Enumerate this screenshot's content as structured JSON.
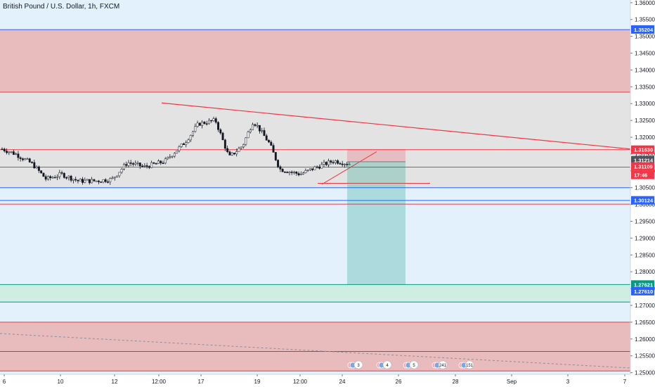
{
  "app": {
    "title": "British Pound / U.S. Dollar, 1h, FXCM"
  },
  "chart_data": {
    "type": "candlestick",
    "title": "British Pound / U.S. Dollar, 1h, FXCM",
    "symbol": "GBPUSD",
    "timeframe": "1h",
    "exchange": "FXCM",
    "ylim": [
      1.2495,
      1.3608
    ],
    "price_axis_ticks": [
      "1.36000",
      "1.35500",
      "1.35000",
      "1.34500",
      "1.34000",
      "1.33500",
      "1.33000",
      "1.32500",
      "1.32000",
      "1.31500",
      "1.31000",
      "1.30500",
      "1.30000",
      "1.29500",
      "1.29000",
      "1.28500",
      "1.28000",
      "1.27500",
      "1.27000",
      "1.26500",
      "1.26000",
      "1.25500",
      "1.25000"
    ],
    "time_axis_ticks": [
      "6",
      "10",
      "12",
      "12:00",
      "17",
      "19",
      "12:00",
      "24",
      "26",
      "28",
      "Sep",
      "3",
      "7"
    ],
    "price_labels": [
      {
        "text": "1.35204",
        "color": "#2962ff"
      },
      {
        "text": "1.31630",
        "color": "#f23645"
      },
      {
        "text": "1.31214",
        "color": "#50535e"
      },
      {
        "text": "1.31109",
        "color": "#f23645"
      },
      {
        "text": "17:46",
        "color": "#f23645"
      },
      {
        "text": "1.30124",
        "color": "#2962ff"
      },
      {
        "text": "1.27621",
        "color": "#089981"
      },
      {
        "text": "1.27610",
        "color": "#2962ff"
      }
    ],
    "zones": [
      {
        "name": "supply-zone",
        "from": 1.3334,
        "to": 1.352,
        "color": "#e8bcbc"
      },
      {
        "name": "range-zone",
        "from": 1.305,
        "to": 1.3334,
        "color": "#e3e3e3"
      },
      {
        "name": "demand-zone",
        "from": 1.271,
        "to": 1.2762,
        "color": "#cdeee0"
      },
      {
        "name": "lower-supply-zone",
        "from": 1.2505,
        "to": 1.265,
        "color": "#e8bcbc"
      }
    ],
    "horizontal_levels": [
      {
        "price": 1.352,
        "color": "#2962ff"
      },
      {
        "price": 1.3334,
        "color": "#f23645"
      },
      {
        "price": 1.3163,
        "color": "#f23645"
      },
      {
        "price": 1.3111,
        "color": "#f23645"
      },
      {
        "price": 1.305,
        "color": "#2962ff"
      },
      {
        "price": 1.3012,
        "color": "#2962ff"
      },
      {
        "price": 1.3001,
        "color": "#f23645"
      },
      {
        "price": 1.2762,
        "color": "#089981"
      },
      {
        "price": 1.271,
        "color": "#089981"
      },
      {
        "price": 1.265,
        "color": "#f23645"
      },
      {
        "price": 1.2563,
        "color": "#2962ff"
      },
      {
        "price": 1.2505,
        "color": "#f23645"
      }
    ],
    "trendline": {
      "from_price": 1.3302,
      "to_price": 1.3165,
      "color": "#f23645"
    },
    "position": {
      "type": "short",
      "entry": 1.3127,
      "stop": 1.3165,
      "target": 1.2762
    },
    "close_price": 1.31214,
    "candles": {
      "count": 152,
      "start_price": 1.3165
    },
    "events": [
      "3",
      "4",
      "5",
      "241",
      "151"
    ]
  }
}
